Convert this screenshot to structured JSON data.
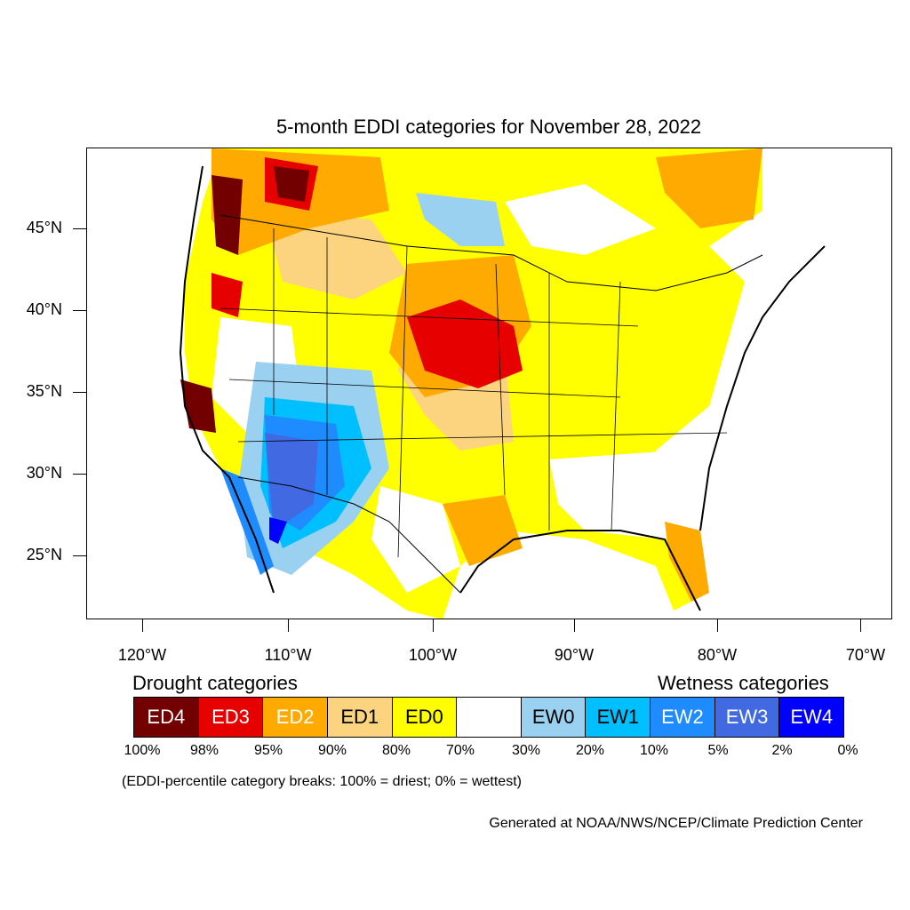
{
  "title": "5-month EDDI categories for November 28, 2022",
  "axes": {
    "y_labels": [
      "45°N",
      "40°N",
      "35°N",
      "30°N",
      "25°N"
    ],
    "x_labels": [
      "120°W",
      "110°W",
      "100°W",
      "90°W",
      "80°W",
      "70°W"
    ]
  },
  "legend": {
    "drought_heading": "Drought categories",
    "wetness_heading": "Wetness categories",
    "categories": [
      {
        "label": "ED4",
        "color": "#730000",
        "text_color": "#ffffff"
      },
      {
        "label": "ED3",
        "color": "#e60000",
        "text_color": "#ffffff"
      },
      {
        "label": "ED2",
        "color": "#ffaa00",
        "text_color": "#ffffff"
      },
      {
        "label": "ED1",
        "color": "#fcd37f",
        "text_color": "#000000"
      },
      {
        "label": "ED0",
        "color": "#ffff00",
        "text_color": "#000000"
      },
      {
        "label": "",
        "color": "#ffffff",
        "text_color": "#000000"
      },
      {
        "label": "EW0",
        "color": "#9ad0f0",
        "text_color": "#000000"
      },
      {
        "label": "EW1",
        "color": "#00bfff",
        "text_color": "#000000"
      },
      {
        "label": "EW2",
        "color": "#1e8cff",
        "text_color": "#ffffff"
      },
      {
        "label": "EW3",
        "color": "#4169e1",
        "text_color": "#ffffff"
      },
      {
        "label": "EW4",
        "color": "#0000ff",
        "text_color": "#ffffff"
      }
    ],
    "percentiles": [
      "100%",
      "98%",
      "95%",
      "90%",
      "80%",
      "70%",
      "30%",
      "20%",
      "10%",
      "5%",
      "2%",
      "0%"
    ]
  },
  "note": "(EDDI-percentile category breaks: 100% = driest; 0% = wettest)",
  "credit": "Generated at NOAA/NWS/NCEP/Climate Prediction Center"
}
